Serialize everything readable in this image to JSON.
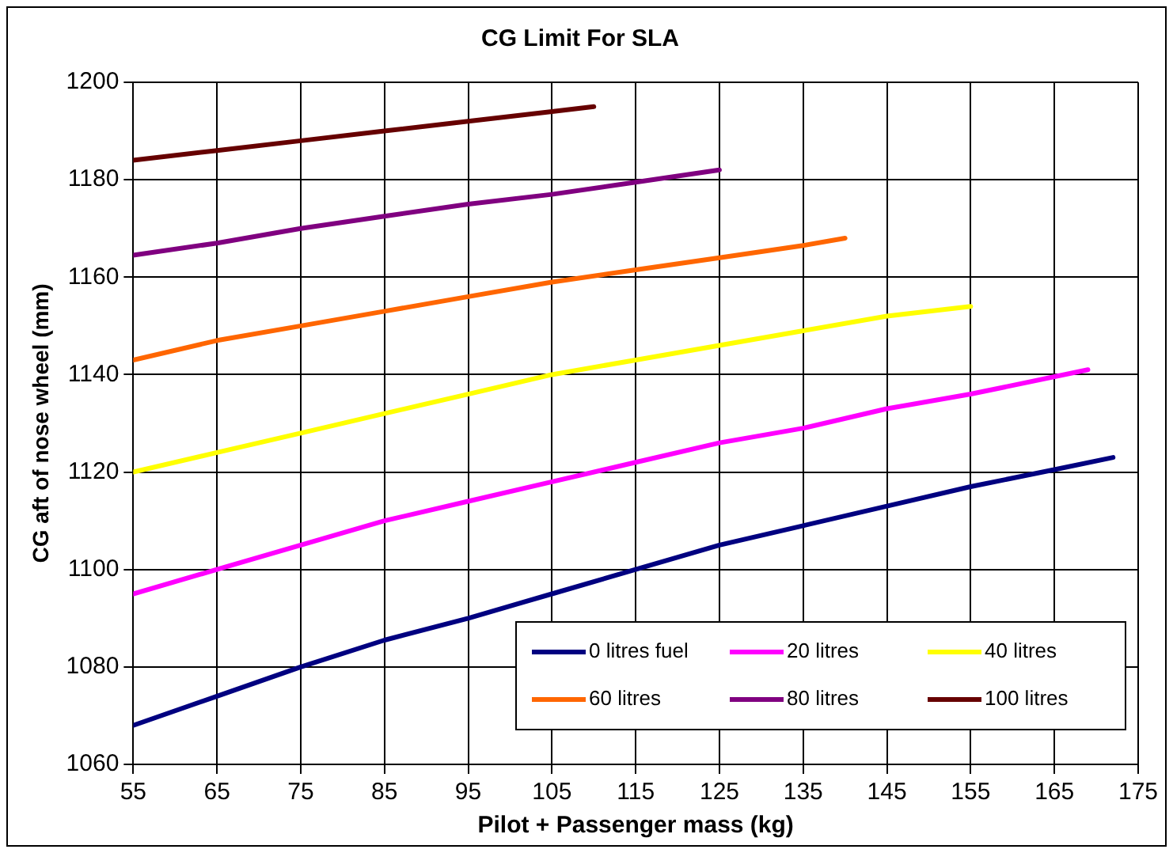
{
  "chart_data": {
    "type": "line",
    "title": "CG Limit For SLA",
    "xlabel": "Pilot + Passenger mass (kg)",
    "ylabel": "CG aft of nose wheel (mm)",
    "xlim": [
      55,
      175
    ],
    "xticks": [
      55,
      65,
      75,
      85,
      95,
      105,
      115,
      125,
      135,
      145,
      155,
      165,
      175
    ],
    "ylim": [
      1060,
      1200
    ],
    "yticks": [
      1060,
      1080,
      1100,
      1120,
      1140,
      1160,
      1180,
      1200
    ],
    "grid": true,
    "legend": "bottom right",
    "marker": "none",
    "line_style": "solid",
    "series": [
      {
        "name": "0 litres fuel",
        "color": "#000080",
        "x": [
          55,
          65,
          75,
          85,
          95,
          105,
          115,
          125,
          135,
          145,
          155,
          165,
          172
        ],
        "values": [
          1068,
          1074,
          1080,
          1085.5,
          1090,
          1095,
          1100,
          1105,
          1109,
          1113,
          1117,
          1120.5,
          1123
        ]
      },
      {
        "name": "20 litres",
        "color": "#ff00ff",
        "x": [
          55,
          65,
          75,
          85,
          95,
          105,
          115,
          125,
          135,
          145,
          155,
          169
        ],
        "values": [
          1095,
          1100,
          1105,
          1110,
          1114,
          1118,
          1122,
          1126,
          1129,
          1133,
          1136,
          1141
        ]
      },
      {
        "name": "40 litres",
        "color": "#ffff00",
        "x": [
          55,
          65,
          75,
          85,
          95,
          105,
          115,
          125,
          135,
          145,
          155
        ],
        "values": [
          1120,
          1124,
          1128,
          1132,
          1136,
          1140,
          1143,
          1146,
          1149,
          1152,
          1154
        ]
      },
      {
        "name": "60 litres",
        "color": "#ff6600",
        "x": [
          55,
          65,
          75,
          85,
          95,
          105,
          115,
          125,
          135,
          140
        ],
        "values": [
          1143,
          1147,
          1150,
          1153,
          1156,
          1159,
          1161.5,
          1164,
          1166.5,
          1168
        ]
      },
      {
        "name": "80 litres",
        "color": "#800080",
        "x": [
          55,
          65,
          75,
          85,
          95,
          105,
          115,
          125
        ],
        "values": [
          1164.5,
          1167,
          1170,
          1172.5,
          1175,
          1177,
          1179.5,
          1182
        ]
      },
      {
        "name": "100 litres",
        "color": "#660000",
        "x": [
          55,
          65,
          75,
          85,
          95,
          105,
          110
        ],
        "values": [
          1184,
          1186,
          1188,
          1190,
          1192,
          1194,
          1195
        ]
      }
    ]
  }
}
